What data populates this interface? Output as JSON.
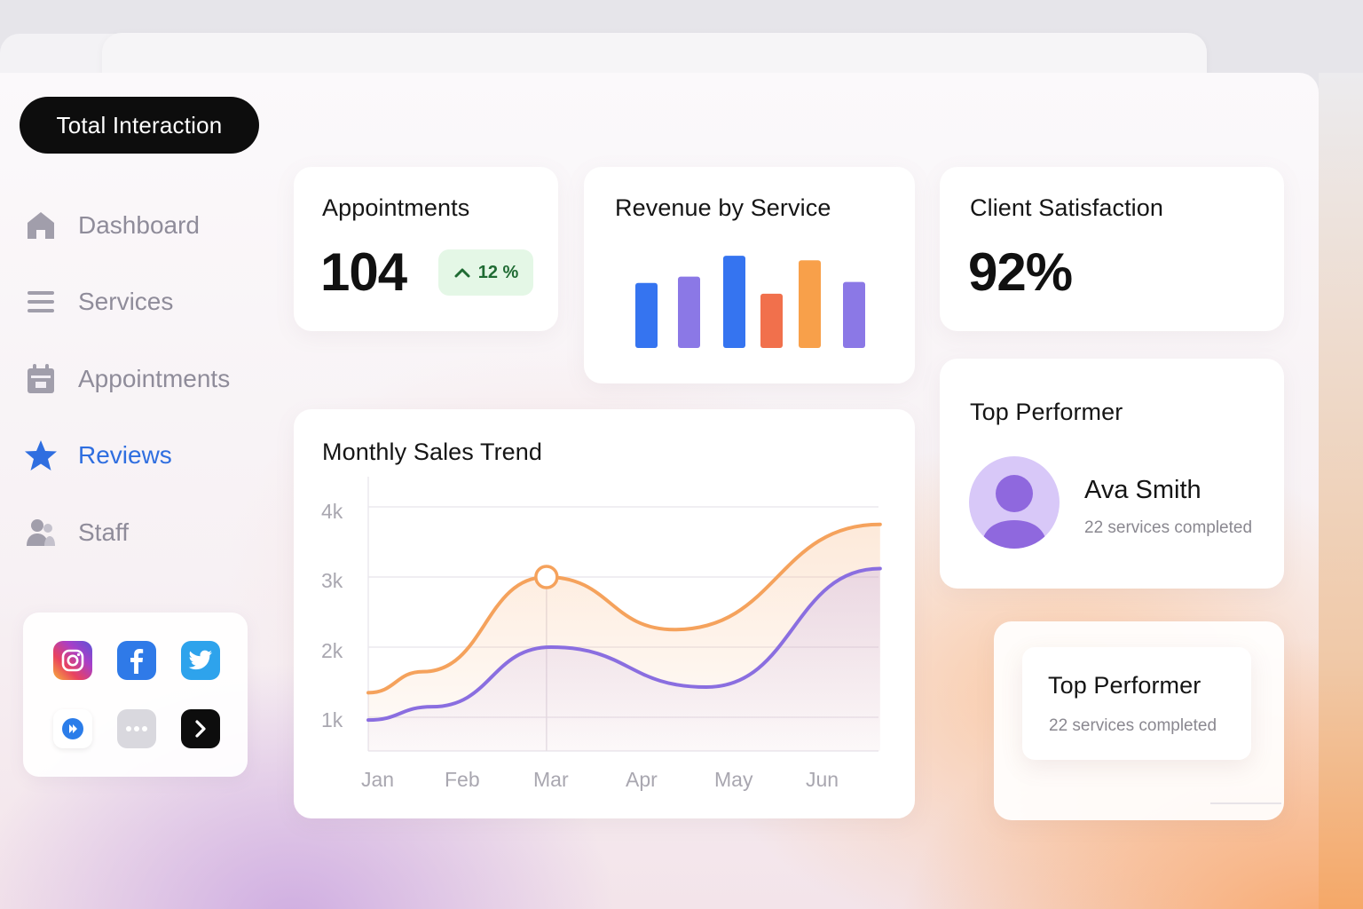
{
  "sidebar": {
    "pill_label": "Total Interaction",
    "items": [
      {
        "label": "Dashboard",
        "icon": "home-icon"
      },
      {
        "label": "Services",
        "icon": "list-icon"
      },
      {
        "label": "Appointments",
        "icon": "calendar-icon"
      },
      {
        "label": "Reviews",
        "icon": "star-icon",
        "active": true
      },
      {
        "label": "Staff",
        "icon": "people-icon"
      }
    ],
    "social_icons": [
      "instagram-icon",
      "facebook-icon",
      "twitter-icon",
      "play-icon",
      "more-icon",
      "arrow-icon"
    ]
  },
  "appointments": {
    "title": "Appointments",
    "value": "104",
    "change": "12 %"
  },
  "revenue": {
    "title": "Revenue by Service",
    "chart_data": {
      "type": "bar",
      "values": [
        72,
        79,
        102,
        60,
        97,
        73
      ],
      "colors": [
        "#3574f0",
        "#8b78e6",
        "#3574f0",
        "#f1704c",
        "#f8a04a",
        "#8b78e6"
      ],
      "ylim": [
        0,
        110
      ]
    }
  },
  "satisfaction": {
    "title": "Client Satisfaction",
    "value": "92%"
  },
  "top_performer": {
    "title": "Top Performer",
    "name": "Ava Smith",
    "subtitle": "22 services completed"
  },
  "top_performer_2": {
    "title": "Top Performer",
    "subtitle": "22 services completed"
  },
  "sales_trend": {
    "title": "Monthly Sales Trend",
    "chart_data": {
      "type": "line",
      "categories": [
        "Jan",
        "Feb",
        "Mar",
        "Apr",
        "May",
        "Jun"
      ],
      "yticks": [
        "4k",
        "3k",
        "2k",
        "1k"
      ],
      "ylim": [
        1000,
        4000
      ],
      "series": [
        {
          "color": "#f5a25c",
          "x": [
            0.0,
            0.6,
            1.95,
            3.35,
            5.6
          ],
          "values": [
            1350,
            1650,
            3000,
            2250,
            3750
          ]
        },
        {
          "color": "#8a6ee0",
          "x": [
            0.0,
            0.7,
            2.0,
            3.7,
            5.6
          ],
          "values": [
            960,
            1150,
            2000,
            1430,
            3120
          ]
        }
      ],
      "highlight": {
        "x": 1.95,
        "value": 3000
      },
      "grid": true
    }
  }
}
